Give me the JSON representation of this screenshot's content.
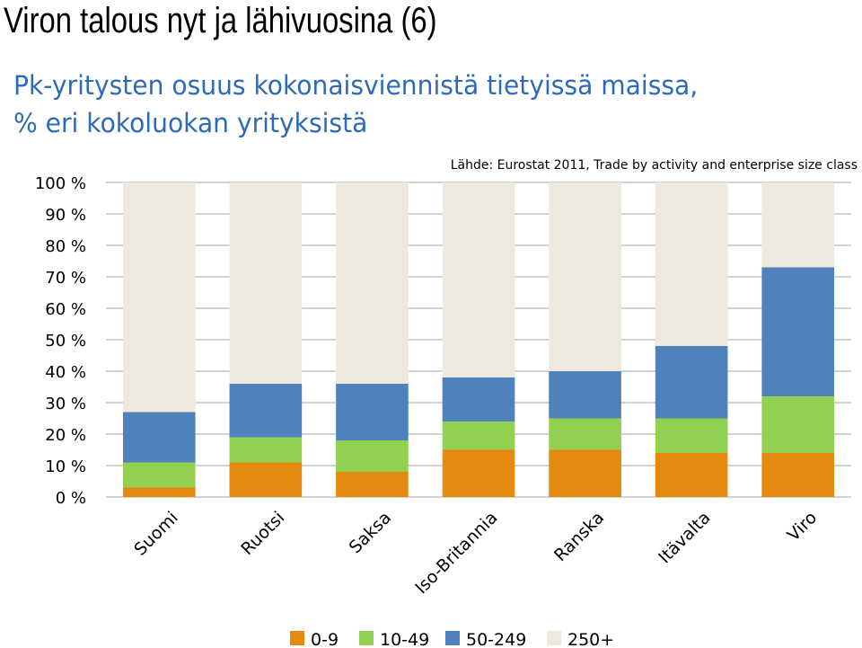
{
  "slide": {
    "title": "Viron talous nyt ja lähivuosina (6)"
  },
  "chart_data": {
    "type": "bar",
    "stacked": true,
    "title_lines": [
      "Pk-yritysten osuus kokonaisviennistä tietyissä maissa,",
      "% eri kokoluokan yrityksistä"
    ],
    "source": "Lähde: Eurostat 2011, Trade by activity and enterprise size class",
    "categories": [
      "Suomi",
      "Ruotsi",
      "Saksa",
      "Iso-Britannia",
      "Ranska",
      "Itävalta",
      "Viro"
    ],
    "series": [
      {
        "name": "0-9",
        "color": "#e38a0f",
        "values": [
          3,
          11,
          8,
          15,
          15,
          14,
          14
        ]
      },
      {
        "name": "10-49",
        "color": "#92d050",
        "values": [
          8,
          8,
          10,
          9,
          10,
          11,
          18
        ]
      },
      {
        "name": "50-249",
        "color": "#4f81bd",
        "values": [
          16,
          17,
          18,
          14,
          15,
          23,
          41
        ]
      },
      {
        "name": "250+",
        "color": "#ede9df",
        "values": [
          73,
          64,
          64,
          62,
          60,
          52,
          27
        ]
      }
    ],
    "ylim": [
      0,
      100
    ],
    "yticks": [
      "0 %",
      "10 %",
      "20 %",
      "30 %",
      "40 %",
      "50 %",
      "60 %",
      "70 %",
      "80 %",
      "90 %",
      "100 %"
    ],
    "grid": true,
    "legend_position": "bottom"
  }
}
